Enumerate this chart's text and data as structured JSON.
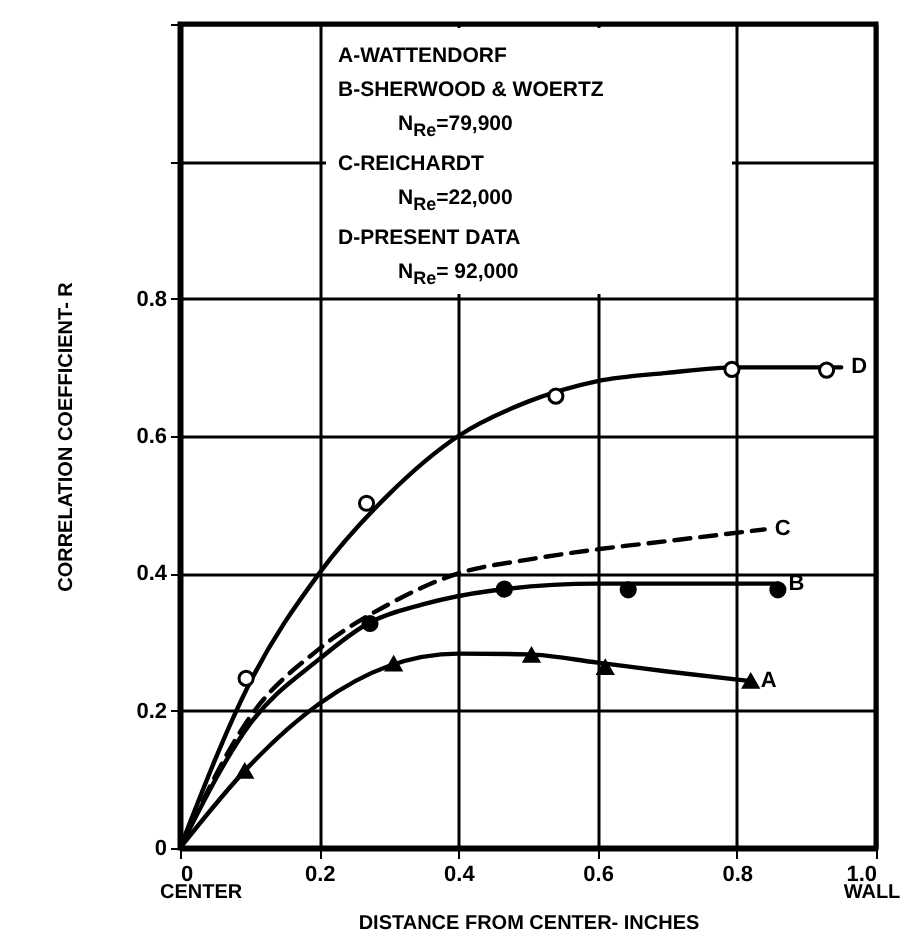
{
  "chart_data": {
    "type": "line",
    "xlabel": "DISTANCE FROM CENTER- INCHES",
    "ylabel": "CORRELATION COEFFICIENT- R",
    "xlim": [
      0,
      1.0
    ],
    "ylim": [
      0,
      1.2
    ],
    "xticks": [
      0,
      0.2,
      0.4,
      0.6,
      0.8,
      {
        "value": 1,
        "label": "1.0"
      }
    ],
    "yticks": [
      0,
      0.2,
      0.4,
      0.6,
      0.8,
      {
        "value": 1,
        "label": null
      },
      {
        "value": 1.2,
        "label": null
      }
    ],
    "grid": true,
    "annotations": [
      "A-WATTENDORF",
      "B-SHERWOOD & WOERTZ",
      "N$_{Re}$=79,900",
      "C-REICHARDT",
      "N$_{Re}$=22,000",
      "D-PRESENT DATA",
      "N$_{Re}$= 92,000",
      "CENTER",
      "WALL"
    ],
    "series": [
      {
        "name": "D",
        "color": "#000000",
        "line_style": "solid",
        "x": [
          0,
          0.1,
          0.2,
          0.3,
          0.4,
          0.5,
          0.6,
          0.7,
          0.8,
          0.95
        ],
        "values": [
          0,
          0.24,
          0.4,
          0.515,
          0.6,
          0.65,
          0.68,
          0.692,
          0.7,
          0.7
        ]
      },
      {
        "name": "C",
        "color": "#000000",
        "line_style": "dashed",
        "x": [
          0,
          0.1,
          0.2,
          0.3,
          0.4,
          0.5,
          0.6,
          0.7,
          0.84
        ],
        "values": [
          0,
          0.19,
          0.29,
          0.355,
          0.4,
          0.42,
          0.435,
          0.447,
          0.464
        ]
      },
      {
        "name": "B",
        "color": "#000000",
        "line_style": "solid",
        "x": [
          0,
          0.1,
          0.2,
          0.27,
          0.35,
          0.45,
          0.6,
          0.75,
          0.86
        ],
        "values": [
          0,
          0.18,
          0.275,
          0.327,
          0.355,
          0.375,
          0.385,
          0.385,
          0.385
        ]
      },
      {
        "name": "A",
        "color": "#000000",
        "line_style": "solid",
        "x": [
          0,
          0.1,
          0.2,
          0.3,
          0.4,
          0.5,
          0.6,
          0.7,
          0.82
        ],
        "values": [
          0,
          0.12,
          0.21,
          0.265,
          0.283,
          0.282,
          0.27,
          0.257,
          0.243
        ]
      },
      {
        "type": "scatter",
        "marker": "circle",
        "color": "#ffffff",
        "x": [
          0.095,
          0.268,
          0.54,
          0.793,
          0.929
        ],
        "values": [
          0.247,
          0.502,
          0.658,
          0.697,
          0.696
        ]
      },
      {
        "type": "scatter",
        "marker": "circle",
        "color": "#000000",
        "x": [
          0.273,
          0.466,
          0.644,
          0.859
        ],
        "values": [
          0.327,
          0.377,
          0.376,
          0.376
        ]
      },
      {
        "type": "scatter",
        "marker": "triangle",
        "color": "#000000",
        "x": [
          0.093,
          0.307,
          0.505,
          0.611,
          0.82
        ],
        "values": [
          0.112,
          0.268,
          0.281,
          0.263,
          0.243
        ]
      }
    ]
  }
}
